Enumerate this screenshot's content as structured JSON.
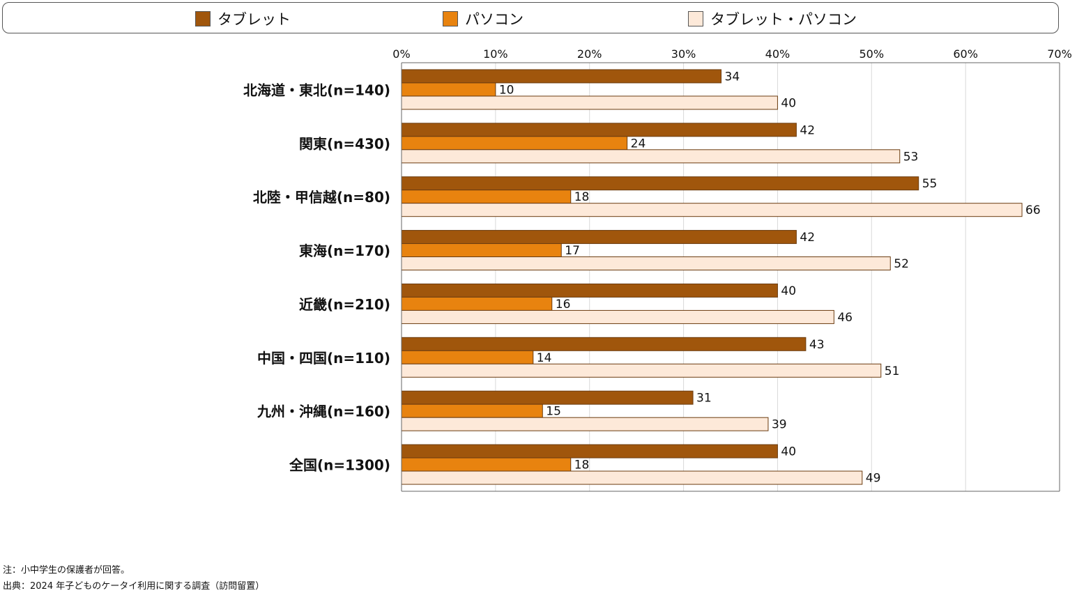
{
  "chart_data": {
    "type": "bar",
    "orientation": "horizontal",
    "title": "",
    "xlabel": "",
    "ylabel": "",
    "xlim": [
      0,
      70
    ],
    "x_ticks": [
      "0%",
      "10%",
      "20%",
      "30%",
      "40%",
      "50%",
      "60%",
      "70%"
    ],
    "grid": true,
    "legend_position": "top",
    "categories": [
      "北海道・東北(n=140)",
      "関東(n=430)",
      "北陸・甲信越(n=80)",
      "東海(n=170)",
      "近畿(n=210)",
      "中国・四国(n=110)",
      "九州・沖縄(n=160)",
      "全国(n=1300)"
    ],
    "series": [
      {
        "name": "タブレット",
        "color": "#a0560c",
        "values": [
          34,
          42,
          55,
          42,
          40,
          43,
          31,
          40
        ]
      },
      {
        "name": "パソコン",
        "color": "#e8830f",
        "values": [
          10,
          24,
          18,
          17,
          16,
          14,
          15,
          18
        ]
      },
      {
        "name": "タブレット・パソコン",
        "color": "#fde9d9",
        "values": [
          40,
          53,
          66,
          52,
          46,
          51,
          39,
          49
        ]
      }
    ]
  },
  "notes": {
    "note": "注：小中学生の保護者が回答。",
    "source": "出典：2024 年子どものケータイ利用に関する調査（訪問留置）"
  }
}
